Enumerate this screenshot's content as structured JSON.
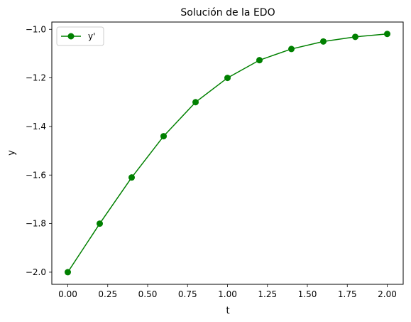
{
  "chart_data": {
    "type": "line",
    "title": "Solución de la EDO",
    "xlabel": "t",
    "ylabel": "y",
    "xlim": [
      -0.1,
      2.1
    ],
    "ylim": [
      -2.05,
      -0.97
    ],
    "x_ticks": [
      0.0,
      0.25,
      0.5,
      0.75,
      1.0,
      1.25,
      1.5,
      1.75,
      2.0
    ],
    "x_tick_labels": [
      "0.00",
      "0.25",
      "0.50",
      "0.75",
      "1.00",
      "1.25",
      "1.50",
      "1.75",
      "2.00"
    ],
    "y_ticks": [
      -2.0,
      -1.8,
      -1.6,
      -1.4,
      -1.2,
      -1.0
    ],
    "y_tick_labels": [
      "−2.0",
      "−1.8",
      "−1.6",
      "−1.4",
      "−1.2",
      "−1.0"
    ],
    "grid": false,
    "legend_position": "top-left",
    "series": [
      {
        "name": "y'",
        "color": "#008000",
        "marker": "circle",
        "x": [
          0.0,
          0.2,
          0.4,
          0.6,
          0.8,
          1.0,
          1.2,
          1.4,
          1.6,
          1.8,
          2.0
        ],
        "y": [
          -2.0,
          -1.8,
          -1.61,
          -1.44,
          -1.3,
          -1.2,
          -1.127,
          -1.081,
          -1.05,
          -1.031,
          -1.019
        ]
      }
    ]
  }
}
